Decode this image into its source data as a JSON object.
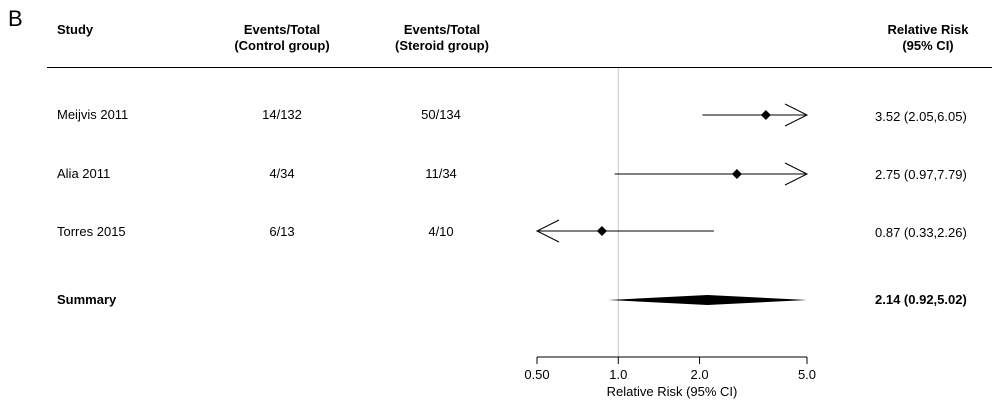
{
  "panel_label": "B",
  "headers": {
    "study": "Study",
    "control": [
      "Events/Total",
      "(Control group)"
    ],
    "steroid": [
      "Events/Total",
      "(Steroid group)"
    ],
    "rr": [
      "Relative Risk",
      "(95% CI)"
    ]
  },
  "rows": [
    {
      "study": "Meijvis 2011",
      "control": "14/132",
      "steroid": "50/134",
      "rr_text": "3.52 (2.05,6.05)"
    },
    {
      "study": "Alia 2011",
      "control": "4/34",
      "steroid": "11/34",
      "rr_text": "2.75 (0.97,7.79)"
    },
    {
      "study": "Torres 2015",
      "control": "6/13",
      "steroid": "4/10",
      "rr_text": "0.87 (0.33,2.26)"
    }
  ],
  "summary": {
    "label": "Summary",
    "rr_text": "2.14 (0.92,5.02)"
  },
  "chart_data": {
    "type": "forest",
    "x_scale": "log",
    "xlabel": "Relative Risk (95% CI)",
    "xlim": [
      0.5,
      5.0
    ],
    "xticks": [
      0.5,
      1.0,
      2.0,
      5.0
    ],
    "xtick_labels": [
      "0.50",
      "1.0",
      "2.0",
      "5.0"
    ],
    "reference_line": 1.0,
    "studies": [
      {
        "name": "Meijvis 2011",
        "rr": 3.52,
        "lower": 2.05,
        "upper": 6.05,
        "clipped_upper": true,
        "clipped_lower": false
      },
      {
        "name": "Alia 2011",
        "rr": 2.75,
        "lower": 0.97,
        "upper": 7.79,
        "clipped_upper": true,
        "clipped_lower": false
      },
      {
        "name": "Torres 2015",
        "rr": 0.87,
        "lower": 0.33,
        "upper": 2.26,
        "clipped_upper": false,
        "clipped_lower": true
      }
    ],
    "summary": {
      "name": "Summary",
      "rr": 2.14,
      "lower": 0.92,
      "upper": 5.02
    }
  }
}
